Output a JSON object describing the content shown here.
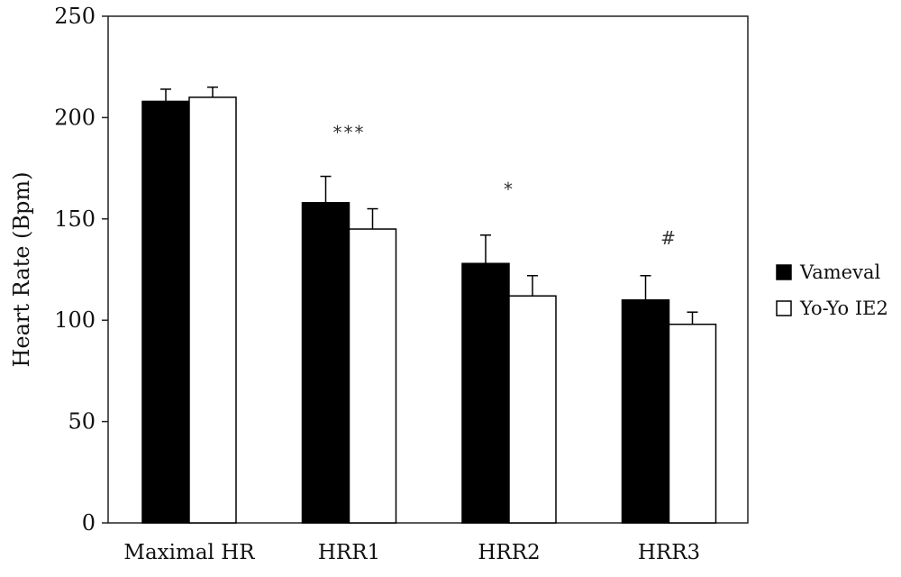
{
  "chart_data": {
    "type": "bar",
    "title": "",
    "xlabel": "",
    "ylabel": "Heart Rate (Bpm)",
    "ylim": [
      0,
      250
    ],
    "yticks": [
      0,
      50,
      100,
      150,
      200,
      250
    ],
    "grid": false,
    "legend_position": "right",
    "categories": [
      "Maximal HR",
      "HRR1",
      "HRR2",
      "HRR3"
    ],
    "series": [
      {
        "name": "Vameval",
        "color": "#000000",
        "values": [
          208,
          158,
          128,
          110
        ],
        "errors": [
          6,
          13,
          14,
          12
        ]
      },
      {
        "name": "Yo-Yo IE2",
        "color": "#ffffff",
        "values": [
          210,
          145,
          112,
          98
        ],
        "errors": [
          5,
          10,
          10,
          6
        ]
      }
    ],
    "annotations": [
      {
        "category": "HRR1",
        "text": "***",
        "y": 193
      },
      {
        "category": "HRR2",
        "text": "*",
        "y": 165
      },
      {
        "category": "HRR3",
        "text": "#",
        "y": 141
      }
    ]
  }
}
